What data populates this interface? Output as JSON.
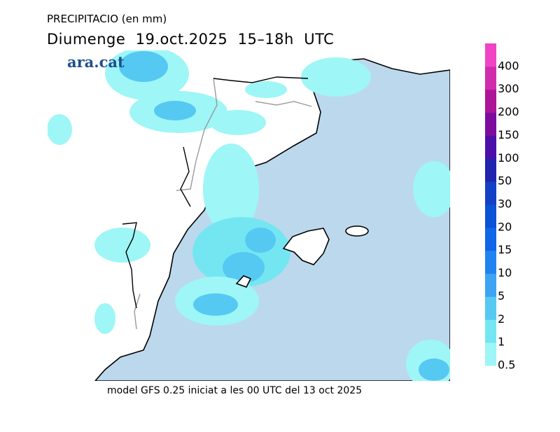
{
  "header": {
    "title": "PRECIPITACIO (en mm)",
    "subtitle": "Diumenge  19.oct.2025  15–18h  UTC",
    "logo": "ara.cat"
  },
  "legend": {
    "items": [
      {
        "label": "0.5",
        "color": "#9ef6f6"
      },
      {
        "label": "1",
        "color": "#74e6f2"
      },
      {
        "label": "2",
        "color": "#55c9f2"
      },
      {
        "label": "5",
        "color": "#3ca4f2"
      },
      {
        "label": "10",
        "color": "#1f84f0"
      },
      {
        "label": "15",
        "color": "#0f66e6"
      },
      {
        "label": "20",
        "color": "#0a52d6"
      },
      {
        "label": "30",
        "color": "#1340c4"
      },
      {
        "label": "50",
        "color": "#2124ae"
      },
      {
        "label": "100",
        "color": "#4c10a8"
      },
      {
        "label": "150",
        "color": "#7d0c9e"
      },
      {
        "label": "200",
        "color": "#ad1497"
      },
      {
        "label": "300",
        "color": "#d22cae"
      },
      {
        "label": "400",
        "color": "#f044c4"
      }
    ]
  },
  "footer": "model GFS 0.25 iniciat a les 00 UTC del 13 oct 2025"
}
